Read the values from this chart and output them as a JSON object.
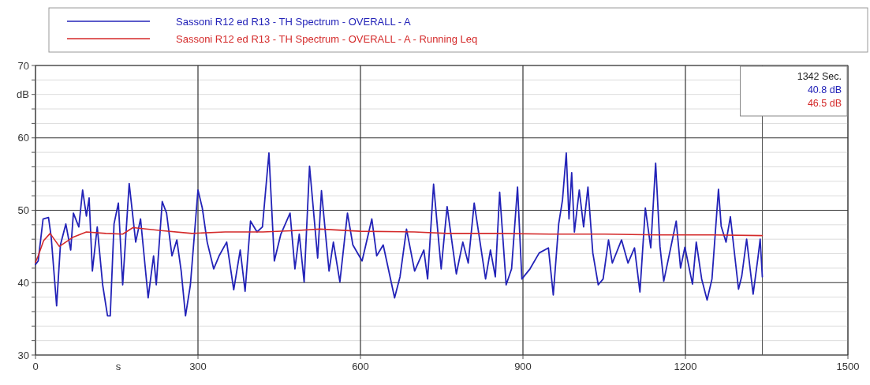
{
  "chart_data": {
    "type": "line",
    "xlabel": "s",
    "ylabel": "dB",
    "xlim": [
      0,
      1500
    ],
    "ylim": [
      30,
      70
    ],
    "xticks": [
      0,
      300,
      600,
      900,
      1200,
      1500
    ],
    "yticks": [
      30,
      {
        "value": 32,
        "label": null
      },
      {
        "value": 34,
        "label": null
      },
      {
        "value": 36,
        "label": null
      },
      {
        "value": 38,
        "label": null
      },
      40,
      {
        "value": 42,
        "label": null
      },
      {
        "value": 44,
        "label": null
      },
      {
        "value": 46,
        "label": null
      },
      {
        "value": 48,
        "label": null
      },
      50,
      {
        "value": 52,
        "label": null
      },
      {
        "value": 54,
        "label": null
      },
      {
        "value": 56,
        "label": null
      },
      {
        "value": 58,
        "label": null
      },
      60,
      {
        "value": 62,
        "label": null
      },
      {
        "value": 64,
        "label": null
      },
      {
        "value": 66,
        "label": null
      },
      {
        "value": 68,
        "label": null
      },
      70
    ],
    "grid": true,
    "legend": "top",
    "marker": "none",
    "line_style": "solid",
    "ref_lines": [
      {
        "axis": "x",
        "value": 1342,
        "label": null
      }
    ],
    "annotations": [
      "1342 Sec.",
      "40.8 dB",
      "46.5 dB"
    ],
    "series": [
      {
        "name": "Sassoni R12 ed R13 - TH Spectrum - OVERALL - A",
        "color": "#2323b8",
        "x": [
          0,
          5,
          14,
          24,
          29,
          39,
          46,
          56,
          65,
          70,
          80,
          87,
          94,
          99,
          105,
          114,
          124,
          133,
          138,
          145,
          153,
          161,
          173,
          185,
          194,
          208,
          218,
          223,
          234,
          242,
          252,
          261,
          269,
          277,
          286,
          300,
          308,
          317,
          329,
          339,
          353,
          366,
          378,
          387,
          397,
          409,
          419,
          431,
          441,
          453,
          470,
          479,
          487,
          496,
          506,
          521,
          528,
          542,
          550,
          562,
          576,
          586,
          603,
          621,
          630,
          642,
          663,
          673,
          685,
          700,
          717,
          724,
          735,
          749,
          760,
          777,
          789,
          799,
          810,
          831,
          840,
          849,
          857,
          869,
          879,
          890,
          898,
          913,
          930,
          947,
          956,
          966,
          973,
          980,
          985,
          990,
          995,
          1004,
          1012,
          1020,
          1029,
          1039,
          1048,
          1058,
          1065,
          1082,
          1094,
          1106,
          1116,
          1126,
          1136,
          1145,
          1153,
          1160,
          1170,
          1183,
          1191,
          1199,
          1213,
          1220,
          1230,
          1240,
          1249,
          1261,
          1266,
          1275,
          1283,
          1298,
          1304,
          1313,
          1325,
          1334,
          1338,
          1342
        ],
        "values": [
          42.5,
          43.0,
          48.8,
          49.0,
          46.3,
          36.8,
          45.2,
          48.1,
          44.5,
          49.6,
          47.7,
          52.8,
          49.2,
          51.7,
          41.6,
          47.7,
          39.7,
          35.4,
          35.4,
          48.1,
          51.0,
          39.7,
          53.7,
          45.6,
          48.8,
          37.9,
          43.7,
          39.7,
          51.2,
          49.6,
          43.7,
          45.9,
          41.6,
          35.4,
          39.7,
          52.8,
          50.3,
          45.6,
          41.9,
          43.7,
          45.6,
          39.0,
          44.5,
          38.8,
          48.5,
          47.0,
          47.7,
          57.9,
          43.0,
          46.7,
          49.6,
          41.9,
          46.7,
          40.1,
          56.1,
          43.4,
          52.7,
          41.6,
          45.6,
          40.1,
          49.6,
          45.2,
          43.0,
          48.8,
          43.7,
          45.2,
          37.9,
          40.8,
          47.4,
          41.6,
          44.5,
          40.5,
          53.6,
          41.9,
          50.5,
          41.2,
          45.6,
          42.7,
          51.0,
          40.5,
          44.5,
          40.8,
          52.5,
          39.7,
          41.9,
          53.2,
          40.5,
          41.9,
          44.1,
          44.8,
          38.3,
          48.1,
          51.4,
          57.9,
          48.8,
          55.2,
          47.0,
          52.8,
          47.7,
          53.2,
          44.1,
          39.7,
          40.5,
          45.9,
          42.7,
          45.9,
          42.7,
          44.8,
          38.7,
          50.3,
          44.8,
          56.5,
          45.0,
          40.2,
          43.8,
          48.5,
          42.0,
          44.9,
          39.8,
          45.6,
          40.5,
          37.6,
          40.5,
          52.9,
          47.8,
          45.6,
          49.1,
          39.1,
          40.9,
          46.0,
          38.4,
          43.5,
          46.0,
          40.8
        ]
      },
      {
        "name": "Sassoni R12 ed R13 - TH Spectrum - OVERALL - A - Running Leq",
        "color": "#d42a2a",
        "x": [
          0,
          5,
          15,
          27,
          44,
          70,
          94,
          130,
          161,
          180,
          232,
          289,
          350,
          420,
          480,
          525,
          600,
          700,
          760,
          850,
          950,
          1050,
          1150,
          1250,
          1342
        ],
        "values": [
          42.8,
          43.7,
          45.8,
          46.8,
          45.0,
          46.3,
          47.0,
          46.8,
          46.7,
          47.6,
          47.2,
          46.8,
          47.0,
          47.0,
          47.2,
          47.4,
          47.1,
          47.0,
          46.8,
          46.8,
          46.7,
          46.7,
          46.6,
          46.6,
          46.5
        ]
      }
    ]
  }
}
